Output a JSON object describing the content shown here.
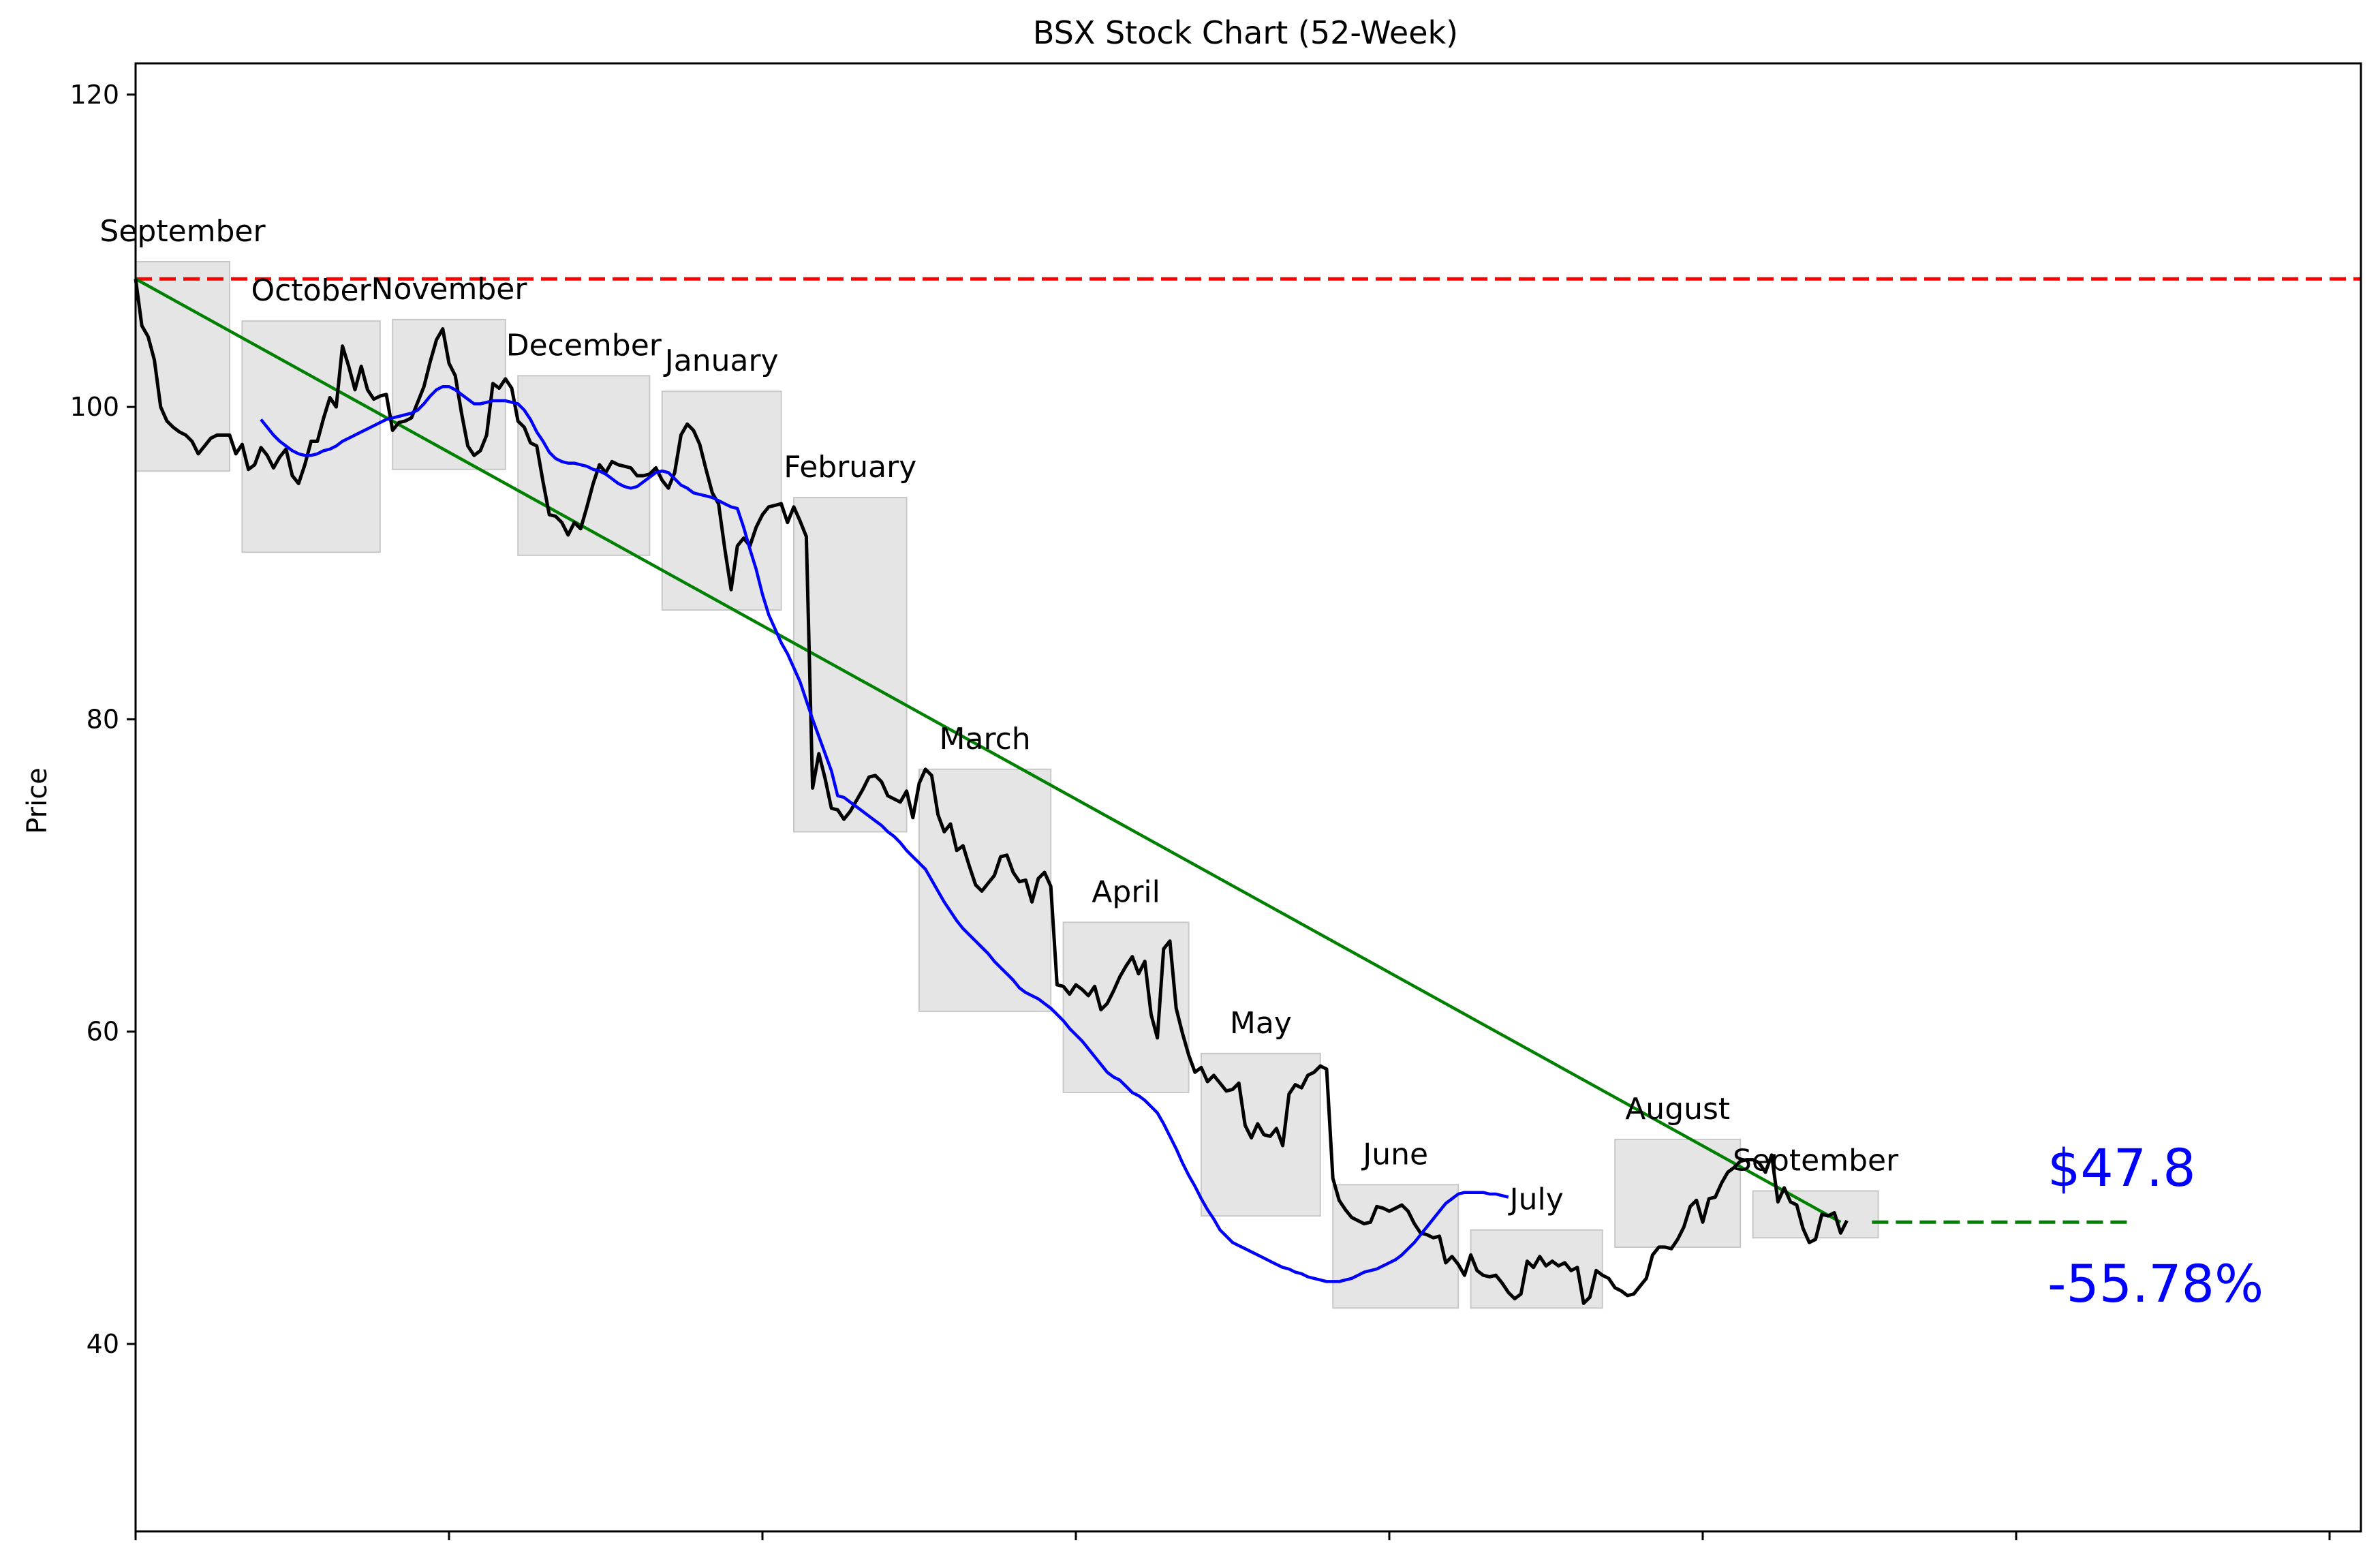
{
  "chart_data": {
    "type": "line",
    "title": "BSX Stock Chart (52-Week)",
    "xlabel": "",
    "ylabel": "Price",
    "ylim": [
      28,
      122
    ],
    "yticks": [
      40,
      60,
      80,
      100,
      120
    ],
    "grid": false,
    "x_unit": "trading day",
    "series": [
      {
        "values": [
          108.2,
          105.2,
          104.5,
          103,
          100,
          99.1,
          98.7,
          98.4,
          98.2,
          97.8,
          97,
          97.5,
          98,
          98.2,
          98.2,
          98.2,
          97,
          97.6,
          96,
          96.3,
          97.4,
          96.9,
          96.1,
          96.8,
          97.3,
          95.6,
          95.1,
          96.3,
          97.8,
          97.8,
          99.3,
          100.6,
          100,
          103.9,
          102.6,
          101.1,
          102.6,
          101.1,
          100.5,
          100.7,
          100.8,
          98.5,
          99,
          99.1,
          99.3,
          100.3,
          101.3,
          102.9,
          104.3,
          105,
          102.8,
          102,
          99.6,
          97.5,
          96.9,
          97.2,
          98.2,
          101.5,
          101.2,
          101.8,
          101.2,
          99.1,
          98.7,
          97.7,
          97.5,
          95.2,
          93.1,
          93,
          92.6,
          91.8,
          92.6,
          92.2,
          93.6,
          95.1,
          96.3,
          95.8,
          96.5,
          96.3,
          96.2,
          96.1,
          95.6,
          95.6,
          95.7,
          96.1,
          95.3,
          94.8,
          95.8,
          98.2,
          98.9,
          98.5,
          97.6,
          96,
          94.5,
          93.8,
          90.9,
          88.3,
          91.1,
          91.6,
          91.1,
          92.3,
          93.1,
          93.6,
          93.7,
          93.8,
          92.6,
          93.6,
          92.7,
          91.7,
          75.6,
          77.8,
          76.2,
          74.3,
          74.2,
          73.6,
          74.1,
          74.8,
          75.5,
          76.3,
          76.4,
          76,
          75.1,
          74.9,
          74.7,
          75.4,
          73.7,
          75.9,
          76.8,
          76.4,
          73.9,
          72.8,
          73.3,
          71.6,
          71.9,
          70.6,
          69.4,
          69,
          69.5,
          70,
          71.2,
          71.3,
          70.2,
          69.6,
          69.7,
          68.3,
          69.8,
          70.2,
          69.3,
          63,
          62.9,
          62.4,
          63,
          62.7,
          62.3,
          62.9,
          61.4,
          61.8,
          62.6,
          63.5,
          64.2,
          64.8,
          63.7,
          64.5,
          61.1,
          59.6,
          65.3,
          65.8,
          61.5,
          59.9,
          58.5,
          57.4,
          57.7,
          56.8,
          57.2,
          56.7,
          56.2,
          56.3,
          56.7,
          54,
          53.2,
          54.1,
          53.4,
          53.3,
          53.8,
          52.7,
          56,
          56.6,
          56.4,
          57.2,
          57.4,
          57.8,
          57.6,
          50.6,
          49.2,
          48.6,
          48.1,
          47.9,
          47.7,
          47.8,
          48.8,
          48.7,
          48.5,
          48.7,
          48.9,
          48.5,
          47.7,
          47.1,
          47,
          46.8,
          46.9,
          45.2,
          45.6,
          45.1,
          44.4,
          45.7,
          44.7,
          44.4,
          44.3,
          44.4,
          43.9,
          43.3,
          42.9,
          43.2,
          45.3,
          44.9,
          45.6,
          45,
          45.3,
          45,
          45.2,
          44.7,
          44.9,
          42.6,
          43,
          44.7,
          44.4,
          44.2,
          43.6,
          43.4,
          43.1,
          43.2,
          43.7,
          44.2,
          45.7,
          46.2,
          46.2,
          46.1,
          46.7,
          47.5,
          48.8,
          49.2,
          47.8,
          49.3,
          49.4,
          50.3,
          51,
          51.3,
          51.7,
          51.8,
          51.8,
          51.6,
          51,
          52.1,
          49.1,
          50,
          49.1,
          48.9,
          47.4,
          46.5,
          46.7,
          48.3,
          48.2,
          48.4,
          47.1,
          47.9
        ],
        "color": "#000000"
      },
      {
        "start_day": 20,
        "values": [
          99.2,
          98.7,
          98.2,
          97.8,
          97.5,
          97.2,
          97,
          96.9,
          96.9,
          97,
          97.2,
          97.3,
          97.5,
          97.8,
          98,
          98.2,
          98.4,
          98.6,
          98.8,
          99,
          99.2,
          99.3,
          99.4,
          99.5,
          99.6,
          99.8,
          100.2,
          100.7,
          101.1,
          101.3,
          101.3,
          101.1,
          100.8,
          100.5,
          100.2,
          100.2,
          100.3,
          100.4,
          100.4,
          100.4,
          100.3,
          100.2,
          99.8,
          99.2,
          98.4,
          97.8,
          97.1,
          96.7,
          96.5,
          96.4,
          96.4,
          96.3,
          96.2,
          96,
          95.9,
          95.7,
          95.4,
          95.1,
          94.9,
          94.8,
          94.9,
          95.2,
          95.5,
          95.8,
          95.9,
          95.8,
          95.4,
          95,
          94.8,
          94.5,
          94.4,
          94.3,
          94.2,
          94,
          93.8,
          93.6,
          93.5,
          92.3,
          90.9,
          89.6,
          88,
          86.7,
          85.8,
          84.9,
          84.2,
          83.3,
          82.4,
          81.2,
          80,
          78.9,
          77.8,
          76.7,
          75.1,
          75,
          74.7,
          74.4,
          74.1,
          73.8,
          73.5,
          73.2,
          72.8,
          72.5,
          72.1,
          71.6,
          71.2,
          70.8,
          70.4,
          69.7,
          69,
          68.3,
          67.7,
          67.1,
          66.6,
          66.2,
          65.8,
          65.4,
          65,
          64.5,
          64.1,
          63.7,
          63.3,
          62.8,
          62.5,
          62.3,
          62.1,
          61.8,
          61.5,
          61.1,
          60.7,
          60.2,
          59.8,
          59.4,
          58.9,
          58.4,
          57.9,
          57.4,
          57.1,
          56.9,
          56.5,
          56.1,
          55.9,
          55.6,
          55.2,
          54.8,
          54.1,
          53.3,
          52.5,
          51.6,
          50.8,
          50.1,
          49.3,
          48.6,
          48,
          47.3,
          46.9,
          46.5,
          46.3,
          46.1,
          45.9,
          45.7,
          45.5,
          45.3,
          45.1,
          44.9,
          44.8,
          44.6,
          44.5,
          44.3,
          44.2,
          44.1,
          44,
          44,
          44,
          44.1,
          44.2,
          44.4,
          44.6,
          44.7,
          44.8,
          45,
          45.2,
          45.4,
          45.7,
          46.1,
          46.5,
          47,
          47.5,
          48,
          48.5,
          49,
          49.3,
          49.6,
          49.7,
          49.7,
          49.7,
          49.7,
          49.6,
          49.6,
          49.5,
          49.4
        ],
        "color": "#0000ff"
      }
    ],
    "trend_line": {
      "x": [
        0,
        272
      ],
      "y": [
        108.2,
        47.8
      ],
      "color": "#008000"
    },
    "projection_line": {
      "x": [
        277,
        318
      ],
      "y": [
        47.8,
        47.8
      ],
      "color": "#008000"
    },
    "reference_line": {
      "y": 108.2,
      "color": "#ff0000"
    },
    "months": [
      {
        "label": "September",
        "start": 0,
        "end": 15,
        "low": 95.9,
        "high": 109.3
      },
      {
        "label": "October",
        "start": 17,
        "end": 39,
        "low": 90.7,
        "high": 105.5
      },
      {
        "label": "November",
        "start": 41,
        "end": 59,
        "low": 96,
        "high": 105.6
      },
      {
        "label": "December",
        "start": 61,
        "end": 82,
        "low": 90.5,
        "high": 102
      },
      {
        "label": "January",
        "start": 84,
        "end": 103,
        "low": 87,
        "high": 101
      },
      {
        "label": "February",
        "start": 105,
        "end": 123,
        "low": 72.8,
        "high": 94.2
      },
      {
        "label": "March",
        "start": 125,
        "end": 146,
        "low": 61.3,
        "high": 76.8
      },
      {
        "label": "April",
        "start": 148,
        "end": 168,
        "low": 56.1,
        "high": 67
      },
      {
        "label": "May",
        "start": 170,
        "end": 189,
        "low": 48.2,
        "high": 58.6
      },
      {
        "label": "June",
        "start": 191,
        "end": 211,
        "low": 42.3,
        "high": 50.2
      },
      {
        "label": "July",
        "start": 213,
        "end": 234,
        "low": 42.3,
        "high": 47.3
      },
      {
        "label": "August",
        "start": 236,
        "end": 256,
        "low": 46.2,
        "high": 53.1
      },
      {
        "label": "September",
        "start": 258,
        "end": 278,
        "low": 46.8,
        "high": 49.8
      }
    ],
    "current_price": "$47.8",
    "change_percent": "-55.78%",
    "price_color": "#0000ff"
  }
}
